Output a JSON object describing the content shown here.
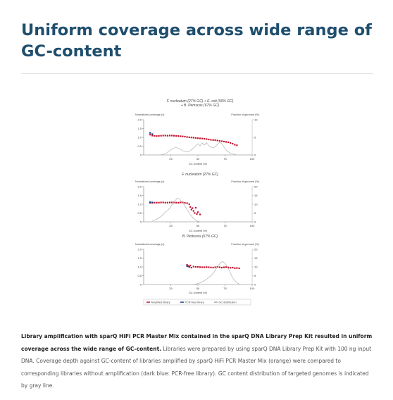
{
  "page": {
    "title": "Uniform coverage across wide range of GC-content"
  },
  "figure": {
    "legend": [
      {
        "label": "Amplified library",
        "color": "#c4122f"
      },
      {
        "label": "PCR-free library",
        "color": "#1f3c88"
      },
      {
        "label": "GC distribution",
        "color": "#a6a6a6"
      }
    ]
  },
  "chart_data": [
    {
      "type": "line",
      "title": "F. nucleatum (27% GC) + E. coli (50% GC) + B. Pertussis (67% GC)",
      "title_lines": [
        "F. nucleatum (27% GC) + E. coli (50% GC)",
        "+ B. Pertussis (67% GC)"
      ],
      "xlabel": "GC content (%)",
      "ylabel": "Normalized coverage (x)",
      "y2label": "Fraction of genome (%)",
      "xlim": [
        0,
        100
      ],
      "ylim": [
        0,
        2.0
      ],
      "y2lim": [
        0,
        10
      ],
      "xticks": [
        "25",
        "50",
        "75",
        "100"
      ],
      "yticks": [
        "0",
        "0.5",
        "1.0",
        "1.5",
        "2.0"
      ],
      "y2ticks": [
        "0",
        "5",
        "10"
      ],
      "grid": false,
      "series": [
        {
          "name": "Amplified library",
          "axis": "left",
          "x": [
            6,
            8,
            10,
            12,
            14,
            16,
            18,
            20,
            22,
            24,
            26,
            28,
            30,
            32,
            34,
            36,
            38,
            40,
            42,
            44,
            46,
            48,
            50,
            52,
            54,
            56,
            58,
            60,
            62,
            64,
            66,
            68,
            70,
            72,
            74,
            76,
            78,
            80,
            82,
            84,
            86
          ],
          "values": [
            1.15,
            1.1,
            1.08,
            1.07,
            1.08,
            1.09,
            1.1,
            1.1,
            1.09,
            1.1,
            1.1,
            1.09,
            1.08,
            1.07,
            1.06,
            1.05,
            1.04,
            1.02,
            1.0,
            0.99,
            0.98,
            0.96,
            0.95,
            0.94,
            0.93,
            0.92,
            0.9,
            0.88,
            0.86,
            0.85,
            0.84,
            0.82,
            0.8,
            0.78,
            0.76,
            0.74,
            0.72,
            0.68,
            0.64,
            0.58,
            0.55
          ]
        },
        {
          "name": "PCR-free library",
          "axis": "left",
          "x": [
            6,
            8
          ],
          "values": [
            1.25,
            1.18
          ]
        },
        {
          "name": "GC distribution",
          "axis": "right",
          "x": [
            15,
            20,
            23,
            26,
            28,
            30,
            33,
            36,
            40,
            43,
            46,
            48,
            50,
            52,
            54,
            56,
            58,
            60,
            62,
            64,
            66,
            68,
            70,
            72,
            74,
            76,
            78,
            80,
            83,
            86
          ],
          "values": [
            0,
            0.3,
            1.0,
            1.6,
            2.0,
            2.1,
            1.8,
            1.2,
            0.8,
            1.2,
            2.0,
            2.6,
            3.2,
            2.6,
            3.4,
            2.8,
            3.5,
            2.6,
            2.2,
            2.0,
            2.4,
            3.0,
            3.6,
            3.2,
            2.2,
            1.4,
            0.9,
            0.5,
            0.2,
            0
          ]
        }
      ]
    },
    {
      "type": "line",
      "title": "F. nucleatum (27% GC)",
      "xlabel": "GC content (%)",
      "ylabel": "Normalized coverage (x)",
      "y2label": "Fraction of genome (%)",
      "xlim": [
        0,
        100
      ],
      "ylim": [
        0,
        2.0
      ],
      "y2lim": [
        0,
        20
      ],
      "xticks": [
        "25",
        "50",
        "75",
        "100"
      ],
      "yticks": [
        "0",
        "0.5",
        "1.0",
        "1.5",
        "2.0"
      ],
      "y2ticks": [
        "0",
        "5",
        "10",
        "15",
        "20"
      ],
      "grid": false,
      "series": [
        {
          "name": "Amplified library",
          "axis": "left",
          "x": [
            6,
            8,
            10,
            12,
            14,
            16,
            18,
            20,
            22,
            24,
            26,
            28,
            30,
            32,
            34,
            36,
            38,
            40,
            42,
            43,
            44,
            45,
            46,
            47,
            48,
            49,
            50,
            52
          ],
          "values": [
            1.08,
            1.08,
            1.09,
            1.09,
            1.09,
            1.1,
            1.1,
            1.09,
            1.09,
            1.1,
            1.1,
            1.1,
            1.09,
            1.09,
            1.1,
            1.1,
            1.08,
            1.06,
            1.0,
            0.85,
            0.7,
            0.78,
            0.62,
            0.5,
            0.8,
            0.45,
            0.55,
            0.42
          ]
        },
        {
          "name": "PCR-free library",
          "axis": "left",
          "x": [
            6,
            8
          ],
          "values": [
            1.12,
            1.1
          ]
        },
        {
          "name": "GC distribution",
          "axis": "right",
          "x": [
            8,
            12,
            16,
            20,
            23,
            26,
            29,
            31,
            33,
            35,
            37,
            40,
            43,
            46,
            49,
            52
          ],
          "values": [
            0.5,
            1.5,
            3,
            5.5,
            7,
            9.5,
            12,
            13.5,
            13,
            11.5,
            10,
            7,
            4,
            2,
            0.5,
            0
          ]
        }
      ]
    },
    {
      "type": "line",
      "title": "B. Pertussis (67% GC)",
      "xlabel": "GC content (%)",
      "ylabel": "Normalized coverage (x)",
      "y2label": "Fraction of genome (%)",
      "xlim": [
        0,
        100
      ],
      "ylim": [
        0,
        2.0
      ],
      "y2lim": [
        0,
        20
      ],
      "xticks": [
        "25",
        "50",
        "75",
        "100"
      ],
      "yticks": [
        "0",
        "0.5",
        "1.0",
        "1.5",
        "2.0"
      ],
      "y2ticks": [
        "0",
        "5",
        "10",
        "15",
        "20"
      ],
      "grid": false,
      "series": [
        {
          "name": "Amplified library",
          "axis": "left",
          "x": [
            40,
            41,
            42,
            43,
            44,
            46,
            48,
            50,
            52,
            54,
            56,
            58,
            60,
            62,
            64,
            66,
            68,
            70,
            72,
            74,
            76,
            78,
            80,
            82,
            84,
            86,
            88
          ],
          "values": [
            1.12,
            1.05,
            1.0,
            1.08,
            0.96,
            1.02,
            1.0,
            1.0,
            0.99,
            0.98,
            0.98,
            0.99,
            0.98,
            0.97,
            0.96,
            0.98,
            1.0,
            0.98,
            0.96,
            0.98,
            0.99,
            0.97,
            0.95,
            0.96,
            0.93,
            0.94,
            0.92
          ]
        },
        {
          "name": "PCR-free library",
          "axis": "left",
          "x": [
            40,
            42
          ],
          "values": [
            1.05,
            1.0
          ]
        },
        {
          "name": "GC distribution",
          "axis": "right",
          "x": [
            45,
            50,
            54,
            58,
            62,
            65,
            67,
            69,
            71,
            73,
            75,
            77,
            79,
            81,
            83,
            86,
            89
          ],
          "values": [
            0,
            0.5,
            1.5,
            3,
            5,
            7,
            9,
            11,
            12.5,
            13,
            12,
            10,
            8,
            5,
            3,
            1,
            0
          ]
        }
      ]
    }
  ],
  "caption": {
    "bold": "Library amplification with sparQ HiFi PCR Master Mix contained in the sparQ DNA Library Prep Kit resulted in uniform coverage across the wide range of GC-content.",
    "text": " Libraries were prepared by using sparQ DNA Library Prep Kit with 100 ng input DNA. Coverage depth against GC-content of libraries amplified by sparQ HiFi PCR Master Mix (orange) were compared to corresponding libraries without amplification (dark blue: PCR-free library). GC content distribution of targeted genomes is indicated by gray line."
  }
}
